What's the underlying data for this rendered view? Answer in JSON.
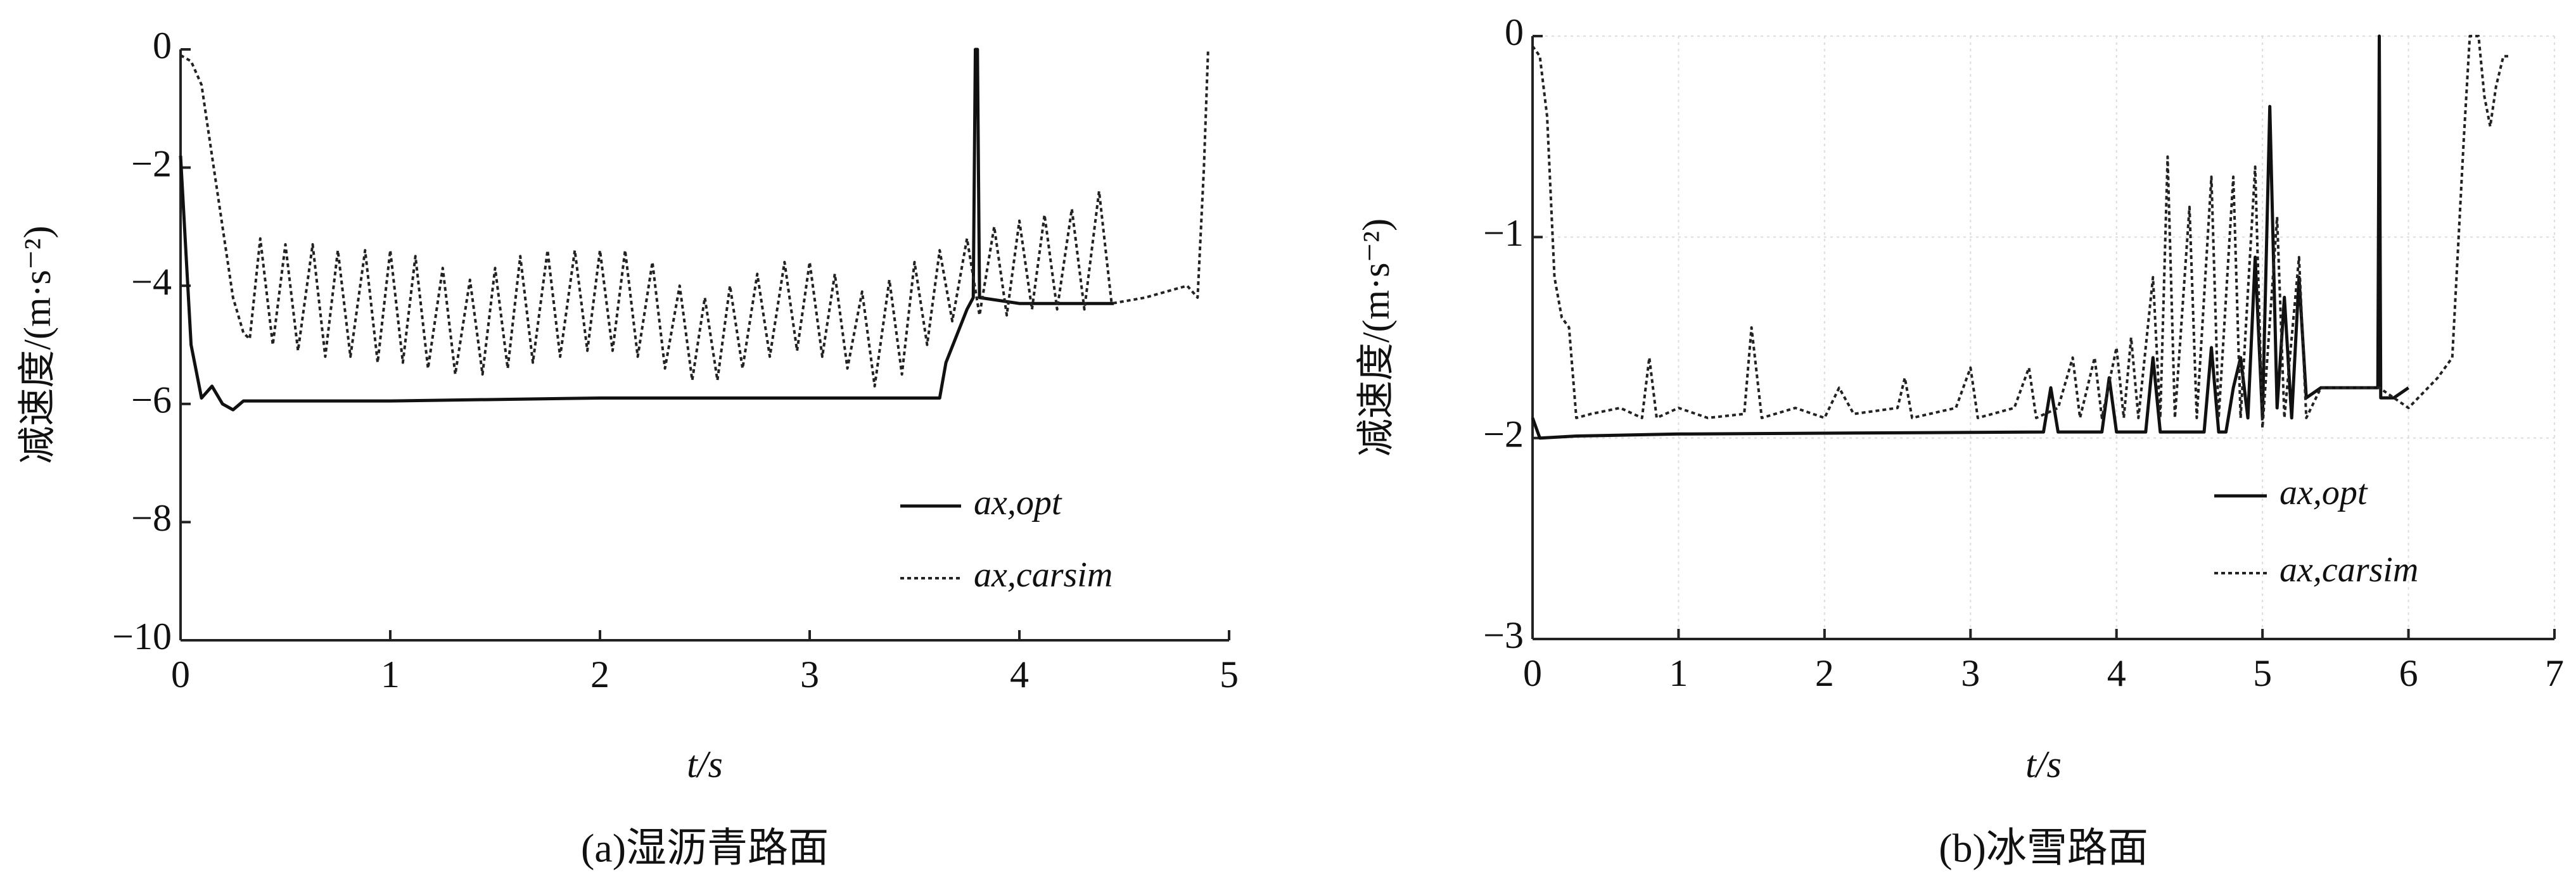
{
  "chart_data": [
    {
      "type": "line",
      "caption": "(a)湿沥青路面",
      "xlabel": "t/s",
      "ylabel": "减速度/(m·s⁻²)",
      "xlim": [
        0,
        5
      ],
      "ylim": [
        -10,
        0
      ],
      "xticks": [
        0,
        1,
        2,
        3,
        4,
        5
      ],
      "yticks": [
        0,
        {
          "value": -2,
          "label": "−2"
        },
        {
          "value": -4,
          "label": "−4"
        },
        {
          "value": -6,
          "label": "−6"
        },
        {
          "value": -8,
          "label": "−8"
        },
        {
          "value": -10,
          "label": "−10"
        }
      ],
      "grid": false,
      "series": [
        {
          "name": "ax,opt",
          "color": "#111111",
          "style": "solid",
          "x": [
            0,
            0.05,
            0.1,
            0.15,
            0.2,
            0.25,
            0.3,
            1,
            2,
            3,
            3.62,
            3.65,
            3.75,
            3.78,
            3.79,
            3.8,
            3.81,
            4,
            4.45
          ],
          "values": [
            -1.8,
            -5,
            -5.9,
            -5.7,
            -6.0,
            -6.1,
            -5.95,
            -5.95,
            -5.9,
            -5.9,
            -5.9,
            -5.3,
            -4.4,
            -4.2,
            0,
            0,
            -4.2,
            -4.3,
            -4.3
          ]
        },
        {
          "name": "ax,carsim",
          "color": "#222222",
          "style": "dotted",
          "x": [
            0,
            0.05,
            0.1,
            0.15,
            0.2,
            0.25,
            0.3,
            0.33,
            0.38,
            0.44,
            0.5,
            0.56,
            0.63,
            0.69,
            0.75,
            0.81,
            0.88,
            0.94,
            1.0,
            1.06,
            1.12,
            1.18,
            1.25,
            1.31,
            1.38,
            1.44,
            1.5,
            1.56,
            1.62,
            1.68,
            1.75,
            1.81,
            1.88,
            1.94,
            2.0,
            2.06,
            2.12,
            2.18,
            2.25,
            2.31,
            2.38,
            2.44,
            2.5,
            2.56,
            2.62,
            2.68,
            2.75,
            2.81,
            2.88,
            2.94,
            3.0,
            3.06,
            3.12,
            3.18,
            3.25,
            3.31,
            3.38,
            3.44,
            3.5,
            3.56,
            3.62,
            3.68,
            3.75,
            3.81,
            3.88,
            3.94,
            4.0,
            4.06,
            4.12,
            4.18,
            4.25,
            4.31,
            4.38,
            4.44,
            4.6,
            4.8,
            4.85,
            4.88,
            4.9
          ],
          "values": [
            -0.1,
            -0.2,
            -0.6,
            -1.8,
            -3.0,
            -4.2,
            -4.8,
            -4.9,
            -3.2,
            -5.0,
            -3.3,
            -5.1,
            -3.3,
            -5.2,
            -3.4,
            -5.2,
            -3.4,
            -5.3,
            -3.4,
            -5.3,
            -3.5,
            -5.4,
            -3.7,
            -5.5,
            -3.9,
            -5.5,
            -3.7,
            -5.4,
            -3.5,
            -5.3,
            -3.4,
            -5.2,
            -3.4,
            -5.1,
            -3.4,
            -5.1,
            -3.4,
            -5.2,
            -3.6,
            -5.4,
            -4.0,
            -5.6,
            -4.2,
            -5.6,
            -4.0,
            -5.4,
            -3.8,
            -5.2,
            -3.6,
            -5.1,
            -3.6,
            -5.2,
            -3.8,
            -5.4,
            -4.1,
            -5.7,
            -3.9,
            -5.5,
            -3.6,
            -5.0,
            -3.4,
            -4.6,
            -3.2,
            -4.5,
            -3.0,
            -4.5,
            -2.9,
            -4.4,
            -2.8,
            -4.4,
            -2.7,
            -4.4,
            -2.4,
            -4.3,
            -4.2,
            -4.0,
            -4.2,
            -2.0,
            0
          ]
        }
      ]
    },
    {
      "type": "line",
      "caption": "(b)冰雪路面",
      "xlabel": "t/s",
      "ylabel": "减速度/(m·s⁻²)",
      "xlim": [
        0,
        7
      ],
      "ylim": [
        -3,
        0
      ],
      "xticks": [
        0,
        1,
        2,
        3,
        4,
        5,
        6,
        7
      ],
      "yticks": [
        0,
        {
          "value": -1,
          "label": "−1"
        },
        {
          "value": -2,
          "label": "−2"
        },
        {
          "value": -3,
          "label": "−3"
        }
      ],
      "grid": true,
      "series": [
        {
          "name": "ax,opt",
          "color": "#111111",
          "style": "solid",
          "x": [
            0,
            0.05,
            0.3,
            1.0,
            3.5,
            3.55,
            3.6,
            3.9,
            3.95,
            4.0,
            4.2,
            4.25,
            4.3,
            4.6,
            4.65,
            4.7,
            4.75,
            4.8,
            4.85,
            4.9,
            4.95,
            5.0,
            5.05,
            5.1,
            5.15,
            5.2,
            5.25,
            5.3,
            5.4,
            5.79,
            5.8,
            5.81,
            5.9,
            6.0
          ],
          "values": [
            -1.9,
            -2.0,
            -1.99,
            -1.98,
            -1.97,
            -1.75,
            -1.97,
            -1.97,
            -1.7,
            -1.97,
            -1.97,
            -1.6,
            -1.97,
            -1.97,
            -1.55,
            -1.97,
            -1.97,
            -1.75,
            -1.6,
            -1.9,
            -1.1,
            -1.9,
            -0.35,
            -1.85,
            -1.3,
            -1.9,
            -1.2,
            -1.8,
            -1.75,
            -1.75,
            0,
            -1.8,
            -1.8,
            -1.75
          ]
        },
        {
          "name": "ax,carsim",
          "color": "#222222",
          "style": "dotted",
          "x": [
            0,
            0.05,
            0.1,
            0.15,
            0.2,
            0.25,
            0.3,
            0.4,
            0.6,
            0.75,
            0.8,
            0.85,
            1.0,
            1.2,
            1.45,
            1.5,
            1.57,
            1.8,
            2.0,
            2.1,
            2.2,
            2.5,
            2.55,
            2.6,
            2.9,
            3.0,
            3.05,
            3.3,
            3.4,
            3.45,
            3.6,
            3.7,
            3.75,
            3.85,
            3.9,
            4.0,
            4.05,
            4.1,
            4.15,
            4.25,
            4.3,
            4.35,
            4.4,
            4.5,
            4.55,
            4.65,
            4.7,
            4.8,
            4.85,
            4.95,
            5.0,
            5.1,
            5.15,
            5.25,
            5.3,
            5.4,
            5.8,
            6.0,
            6.2,
            6.3,
            6.38,
            6.42,
            6.48,
            6.52,
            6.56,
            6.6,
            6.65,
            6.7
          ],
          "values": [
            -0.05,
            -0.1,
            -0.4,
            -1.2,
            -1.4,
            -1.45,
            -1.9,
            -1.88,
            -1.85,
            -1.9,
            -1.6,
            -1.9,
            -1.85,
            -1.9,
            -1.88,
            -1.45,
            -1.9,
            -1.85,
            -1.9,
            -1.75,
            -1.88,
            -1.85,
            -1.7,
            -1.9,
            -1.85,
            -1.65,
            -1.9,
            -1.85,
            -1.65,
            -1.9,
            -1.85,
            -1.6,
            -1.9,
            -1.6,
            -1.9,
            -1.55,
            -1.9,
            -1.5,
            -1.9,
            -1.2,
            -1.9,
            -0.6,
            -1.9,
            -0.85,
            -1.9,
            -0.7,
            -1.9,
            -0.7,
            -1.9,
            -0.65,
            -1.95,
            -0.9,
            -1.9,
            -1.1,
            -1.9,
            -1.75,
            -1.75,
            -1.85,
            -1.7,
            -1.6,
            -0.5,
            0,
            0,
            -0.3,
            -0.45,
            -0.25,
            -0.1,
            -0.1
          ]
        }
      ]
    }
  ]
}
